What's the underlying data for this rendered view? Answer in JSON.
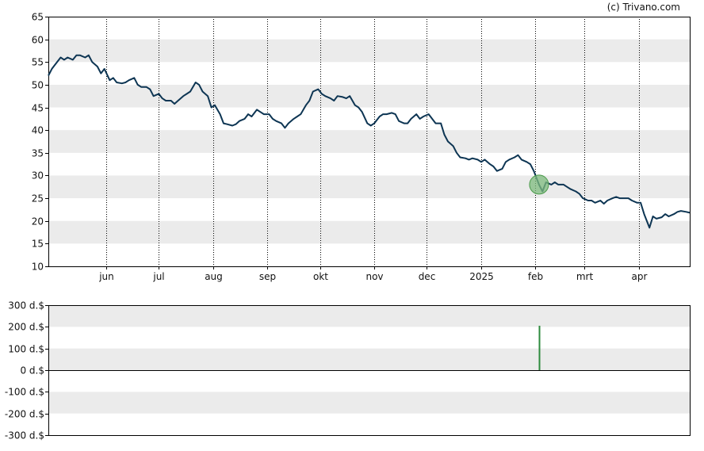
{
  "credit": "(c) Trivano.com",
  "colors": {
    "price_line": "#0d3553",
    "band": "#ebebeb",
    "volume_bar": "#2e8b3e",
    "marker_fill": "#7dbb7d",
    "marker_stroke": "#4a9a4a",
    "axis": "#000000",
    "month_grid": "#000000"
  },
  "chart_data": [
    {
      "type": "line",
      "title": "",
      "xlabel": "",
      "ylabel": "",
      "ylim": [
        10,
        65
      ],
      "yticks": [
        10,
        15,
        20,
        25,
        30,
        35,
        40,
        45,
        50,
        55,
        60,
        65
      ],
      "grid": "alternating horizontal bands, dotted vertical month lines",
      "x_range": [
        "2024-04-29",
        "2025-04-30"
      ],
      "month_ticks": [
        {
          "label": "jun",
          "date": "2024-06-01"
        },
        {
          "label": "jul",
          "date": "2024-07-01"
        },
        {
          "label": "aug",
          "date": "2024-08-01"
        },
        {
          "label": "sep",
          "date": "2024-09-01"
        },
        {
          "label": "okt",
          "date": "2024-10-01"
        },
        {
          "label": "nov",
          "date": "2024-11-01"
        },
        {
          "label": "dec",
          "date": "2024-12-01"
        },
        {
          "label": "2025",
          "date": "2025-01-01"
        },
        {
          "label": "feb",
          "date": "2025-02-01"
        },
        {
          "label": "mrt",
          "date": "2025-03-01"
        },
        {
          "label": "apr",
          "date": "2025-04-01"
        }
      ],
      "series": [
        {
          "points": [
            [
              "2024-04-29",
              52.0
            ],
            [
              "2024-05-01",
              53.5
            ],
            [
              "2024-05-03",
              54.5
            ],
            [
              "2024-05-06",
              56.0
            ],
            [
              "2024-05-08",
              55.5
            ],
            [
              "2024-05-10",
              56.0
            ],
            [
              "2024-05-13",
              55.5
            ],
            [
              "2024-05-15",
              56.5
            ],
            [
              "2024-05-17",
              56.5
            ],
            [
              "2024-05-20",
              56.0
            ],
            [
              "2024-05-22",
              56.5
            ],
            [
              "2024-05-24",
              55.0
            ],
            [
              "2024-05-27",
              54.0
            ],
            [
              "2024-05-29",
              52.5
            ],
            [
              "2024-05-31",
              53.5
            ],
            [
              "2024-06-03",
              51.0
            ],
            [
              "2024-06-05",
              51.5
            ],
            [
              "2024-06-07",
              50.5
            ],
            [
              "2024-06-10",
              50.3
            ],
            [
              "2024-06-12",
              50.5
            ],
            [
              "2024-06-14",
              51.0
            ],
            [
              "2024-06-17",
              51.5
            ],
            [
              "2024-06-19",
              50.0
            ],
            [
              "2024-06-21",
              49.5
            ],
            [
              "2024-06-24",
              49.5
            ],
            [
              "2024-06-26",
              49.0
            ],
            [
              "2024-06-28",
              47.5
            ],
            [
              "2024-07-01",
              48.0
            ],
            [
              "2024-07-03",
              47.0
            ],
            [
              "2024-07-05",
              46.5
            ],
            [
              "2024-07-08",
              46.5
            ],
            [
              "2024-07-10",
              45.8
            ],
            [
              "2024-07-12",
              46.5
            ],
            [
              "2024-07-15",
              47.5
            ],
            [
              "2024-07-17",
              48.0
            ],
            [
              "2024-07-19",
              48.5
            ],
            [
              "2024-07-22",
              50.5
            ],
            [
              "2024-07-24",
              50.0
            ],
            [
              "2024-07-26",
              48.5
            ],
            [
              "2024-07-29",
              47.5
            ],
            [
              "2024-07-31",
              45.0
            ],
            [
              "2024-08-02",
              45.5
            ],
            [
              "2024-08-05",
              43.5
            ],
            [
              "2024-08-07",
              41.5
            ],
            [
              "2024-08-09",
              41.3
            ],
            [
              "2024-08-12",
              41.0
            ],
            [
              "2024-08-14",
              41.3
            ],
            [
              "2024-08-16",
              42.0
            ],
            [
              "2024-08-19",
              42.5
            ],
            [
              "2024-08-21",
              43.5
            ],
            [
              "2024-08-23",
              43.0
            ],
            [
              "2024-08-26",
              44.5
            ],
            [
              "2024-08-28",
              44.0
            ],
            [
              "2024-08-30",
              43.5
            ],
            [
              "2024-09-02",
              43.5
            ],
            [
              "2024-09-04",
              42.5
            ],
            [
              "2024-09-06",
              42.0
            ],
            [
              "2024-09-09",
              41.5
            ],
            [
              "2024-09-11",
              40.5
            ],
            [
              "2024-09-13",
              41.5
            ],
            [
              "2024-09-16",
              42.5
            ],
            [
              "2024-09-18",
              43.0
            ],
            [
              "2024-09-20",
              43.5
            ],
            [
              "2024-09-23",
              45.5
            ],
            [
              "2024-09-25",
              46.5
            ],
            [
              "2024-09-27",
              48.5
            ],
            [
              "2024-09-30",
              49.0
            ],
            [
              "2024-10-02",
              48.0
            ],
            [
              "2024-10-04",
              47.5
            ],
            [
              "2024-10-07",
              47.0
            ],
            [
              "2024-10-09",
              46.5
            ],
            [
              "2024-10-11",
              47.5
            ],
            [
              "2024-10-14",
              47.3
            ],
            [
              "2024-10-16",
              47.0
            ],
            [
              "2024-10-18",
              47.5
            ],
            [
              "2024-10-21",
              45.5
            ],
            [
              "2024-10-23",
              45.0
            ],
            [
              "2024-10-25",
              44.0
            ],
            [
              "2024-10-28",
              41.5
            ],
            [
              "2024-10-30",
              41.0
            ],
            [
              "2024-11-01",
              41.5
            ],
            [
              "2024-11-04",
              43.0
            ],
            [
              "2024-11-06",
              43.5
            ],
            [
              "2024-11-08",
              43.5
            ],
            [
              "2024-11-11",
              43.8
            ],
            [
              "2024-11-13",
              43.5
            ],
            [
              "2024-11-15",
              42.0
            ],
            [
              "2024-11-18",
              41.5
            ],
            [
              "2024-11-20",
              41.5
            ],
            [
              "2024-11-22",
              42.5
            ],
            [
              "2024-11-25",
              43.5
            ],
            [
              "2024-11-27",
              42.5
            ],
            [
              "2024-11-29",
              43.0
            ],
            [
              "2024-12-02",
              43.5
            ],
            [
              "2024-12-04",
              42.5
            ],
            [
              "2024-12-06",
              41.5
            ],
            [
              "2024-12-09",
              41.5
            ],
            [
              "2024-12-11",
              39.0
            ],
            [
              "2024-12-13",
              37.5
            ],
            [
              "2024-12-16",
              36.5
            ],
            [
              "2024-12-18",
              35.0
            ],
            [
              "2024-12-20",
              34.0
            ],
            [
              "2024-12-23",
              33.8
            ],
            [
              "2024-12-25",
              33.5
            ],
            [
              "2024-12-27",
              33.8
            ],
            [
              "2024-12-30",
              33.5
            ],
            [
              "2025-01-01",
              33.0
            ],
            [
              "2025-01-03",
              33.5
            ],
            [
              "2025-01-06",
              32.5
            ],
            [
              "2025-01-08",
              32.0
            ],
            [
              "2025-01-10",
              31.0
            ],
            [
              "2025-01-13",
              31.5
            ],
            [
              "2025-01-15",
              33.0
            ],
            [
              "2025-01-17",
              33.5
            ],
            [
              "2025-01-20",
              34.0
            ],
            [
              "2025-01-22",
              34.5
            ],
            [
              "2025-01-24",
              33.5
            ],
            [
              "2025-01-27",
              33.0
            ],
            [
              "2025-01-29",
              32.5
            ],
            [
              "2025-01-31",
              31.0
            ],
            [
              "2025-02-03",
              28.0
            ],
            [
              "2025-02-05",
              26.5
            ],
            [
              "2025-02-07",
              28.5
            ],
            [
              "2025-02-10",
              28.0
            ],
            [
              "2025-02-12",
              28.5
            ],
            [
              "2025-02-14",
              28.0
            ],
            [
              "2025-02-17",
              28.0
            ],
            [
              "2025-02-19",
              27.5
            ],
            [
              "2025-02-21",
              27.0
            ],
            [
              "2025-02-24",
              26.5
            ],
            [
              "2025-02-26",
              26.0
            ],
            [
              "2025-02-28",
              25.0
            ],
            [
              "2025-03-03",
              24.5
            ],
            [
              "2025-03-05",
              24.5
            ],
            [
              "2025-03-07",
              24.0
            ],
            [
              "2025-03-10",
              24.5
            ],
            [
              "2025-03-12",
              23.8
            ],
            [
              "2025-03-14",
              24.5
            ],
            [
              "2025-03-17",
              25.0
            ],
            [
              "2025-03-19",
              25.3
            ],
            [
              "2025-03-21",
              25.0
            ],
            [
              "2025-03-24",
              25.0
            ],
            [
              "2025-03-26",
              25.0
            ],
            [
              "2025-03-28",
              24.5
            ],
            [
              "2025-03-31",
              24.0
            ],
            [
              "2025-04-02",
              24.0
            ],
            [
              "2025-04-04",
              21.5
            ],
            [
              "2025-04-07",
              18.5
            ],
            [
              "2025-04-09",
              21.0
            ],
            [
              "2025-04-11",
              20.5
            ],
            [
              "2025-04-14",
              20.8
            ],
            [
              "2025-04-16",
              21.5
            ],
            [
              "2025-04-18",
              21.0
            ],
            [
              "2025-04-21",
              21.5
            ],
            [
              "2025-04-23",
              22.0
            ],
            [
              "2025-04-25",
              22.2
            ],
            [
              "2025-04-28",
              22.0
            ],
            [
              "2025-04-30",
              21.8
            ]
          ]
        }
      ],
      "annotations": [
        {
          "type": "marker",
          "date": "2025-02-03",
          "value": 28.0
        }
      ]
    },
    {
      "type": "bar",
      "title": "",
      "xlabel": "",
      "ylabel": "",
      "ylim": [
        -300,
        300
      ],
      "yticks": [
        -300,
        -200,
        -100,
        0,
        100,
        200,
        300
      ],
      "ytick_labels": [
        "-300 d.$",
        "-200 d.$",
        "-100 d.$",
        "0 d.$",
        "100 d.$",
        "200 d.$",
        "300 d.$"
      ],
      "grid": "alternating horizontal bands",
      "bars": [
        {
          "date": "2025-02-03",
          "value": 205
        }
      ]
    }
  ]
}
